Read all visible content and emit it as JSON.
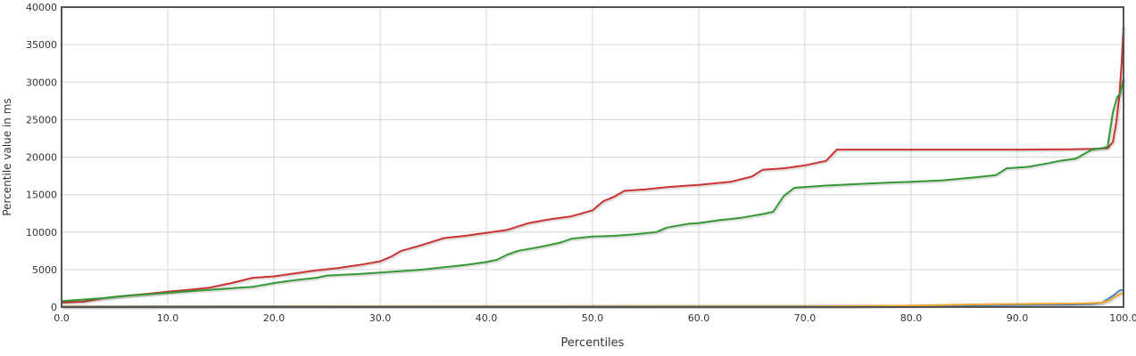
{
  "chart_data": {
    "type": "line",
    "title": "",
    "xlabel": "Percentiles",
    "ylabel": "Percentile value in ms",
    "xlim": [
      0,
      100
    ],
    "ylim": [
      0,
      40000
    ],
    "xticks": [
      "0.0",
      "10.0",
      "20.0",
      "30.0",
      "40.0",
      "50.0",
      "60.0",
      "70.0",
      "80.0",
      "90.0",
      "100.0"
    ],
    "yticks": [
      "0",
      "5000",
      "10000",
      "15000",
      "20000",
      "25000",
      "30000",
      "35000",
      "40000"
    ],
    "grid": true,
    "legend": "none",
    "series": [
      {
        "color": "#cc3333",
        "points": [
          [
            0,
            600
          ],
          [
            2,
            700
          ],
          [
            4,
            1200
          ],
          [
            6,
            1500
          ],
          [
            8,
            1750
          ],
          [
            10,
            2050
          ],
          [
            12,
            2300
          ],
          [
            14,
            2600
          ],
          [
            16,
            3200
          ],
          [
            18,
            3900
          ],
          [
            20,
            4100
          ],
          [
            22,
            4500
          ],
          [
            24,
            4900
          ],
          [
            26,
            5200
          ],
          [
            28,
            5600
          ],
          [
            30,
            6100
          ],
          [
            31,
            6700
          ],
          [
            32,
            7500
          ],
          [
            34,
            8300
          ],
          [
            36,
            9200
          ],
          [
            38,
            9500
          ],
          [
            40,
            9900
          ],
          [
            42,
            10300
          ],
          [
            44,
            11200
          ],
          [
            46,
            11700
          ],
          [
            48,
            12100
          ],
          [
            50,
            12900
          ],
          [
            51,
            14100
          ],
          [
            52,
            14700
          ],
          [
            53,
            15500
          ],
          [
            55,
            15700
          ],
          [
            57,
            16000
          ],
          [
            60,
            16300
          ],
          [
            63,
            16700
          ],
          [
            65,
            17400
          ],
          [
            66,
            18300
          ],
          [
            68,
            18500
          ],
          [
            70,
            18900
          ],
          [
            72,
            19500
          ],
          [
            73,
            21000
          ],
          [
            75,
            21000
          ],
          [
            80,
            21000
          ],
          [
            85,
            21000
          ],
          [
            90,
            21000
          ],
          [
            95,
            21050
          ],
          [
            97,
            21100
          ],
          [
            98.5,
            21200
          ],
          [
            99,
            22000
          ],
          [
            99.3,
            24500
          ],
          [
            99.6,
            28000
          ],
          [
            99.8,
            32000
          ],
          [
            100,
            37500
          ]
        ]
      },
      {
        "color": "#339933",
        "points": [
          [
            0,
            800
          ],
          [
            2,
            1000
          ],
          [
            4,
            1200
          ],
          [
            6,
            1500
          ],
          [
            8,
            1700
          ],
          [
            10,
            1900
          ],
          [
            12,
            2100
          ],
          [
            14,
            2300
          ],
          [
            16,
            2500
          ],
          [
            18,
            2700
          ],
          [
            20,
            3200
          ],
          [
            22,
            3600
          ],
          [
            24,
            3900
          ],
          [
            25,
            4200
          ],
          [
            28,
            4400
          ],
          [
            30,
            4600
          ],
          [
            32,
            4800
          ],
          [
            34,
            5000
          ],
          [
            36,
            5300
          ],
          [
            38,
            5600
          ],
          [
            40,
            6000
          ],
          [
            41,
            6300
          ],
          [
            42,
            7000
          ],
          [
            43,
            7500
          ],
          [
            45,
            8000
          ],
          [
            47,
            8600
          ],
          [
            48,
            9100
          ],
          [
            50,
            9400
          ],
          [
            52,
            9500
          ],
          [
            54,
            9700
          ],
          [
            56,
            10000
          ],
          [
            57,
            10600
          ],
          [
            59,
            11100
          ],
          [
            60,
            11200
          ],
          [
            62,
            11600
          ],
          [
            64,
            11900
          ],
          [
            66,
            12400
          ],
          [
            67,
            12700
          ],
          [
            68,
            14800
          ],
          [
            69,
            15900
          ],
          [
            72,
            16200
          ],
          [
            75,
            16400
          ],
          [
            78,
            16600
          ],
          [
            80,
            16700
          ],
          [
            83,
            16900
          ],
          [
            86,
            17300
          ],
          [
            88,
            17600
          ],
          [
            89,
            18500
          ],
          [
            91,
            18700
          ],
          [
            93,
            19200
          ],
          [
            94,
            19500
          ],
          [
            95.5,
            19800
          ],
          [
            97,
            21000
          ],
          [
            98,
            21200
          ],
          [
            98.5,
            21400
          ],
          [
            99,
            26000
          ],
          [
            99.4,
            28000
          ],
          [
            99.7,
            28500
          ],
          [
            100,
            30500
          ]
        ]
      },
      {
        "color": "#4a86c5",
        "points": [
          [
            0,
            100
          ],
          [
            20,
            120
          ],
          [
            40,
            130
          ],
          [
            60,
            140
          ],
          [
            70,
            150
          ],
          [
            80,
            180
          ],
          [
            85,
            220
          ],
          [
            88,
            260
          ],
          [
            90,
            300
          ],
          [
            95,
            350
          ],
          [
            97,
            420
          ],
          [
            98,
            600
          ],
          [
            99,
            1500
          ],
          [
            99.6,
            2200
          ],
          [
            100,
            2300
          ]
        ]
      },
      {
        "color": "#f0a830",
        "points": [
          [
            0,
            60
          ],
          [
            40,
            70
          ],
          [
            70,
            90
          ],
          [
            80,
            200
          ],
          [
            85,
            320
          ],
          [
            88,
            380
          ],
          [
            90,
            420
          ],
          [
            95,
            480
          ],
          [
            97,
            520
          ],
          [
            98,
            600
          ],
          [
            98.7,
            900
          ],
          [
            99.2,
            1400
          ],
          [
            99.6,
            1700
          ],
          [
            100,
            1900
          ]
        ]
      }
    ]
  }
}
